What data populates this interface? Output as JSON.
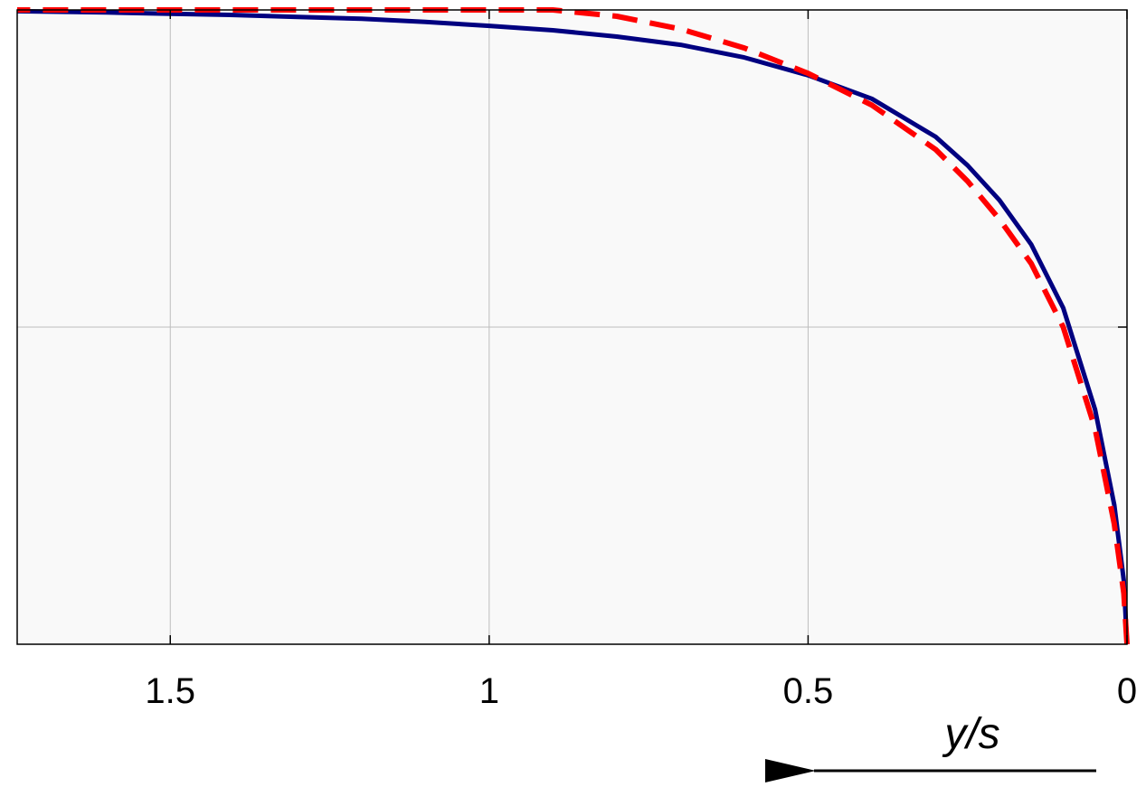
{
  "chart_data": {
    "type": "line",
    "xlabel": "y/s",
    "x_direction": "reversed",
    "xlim": [
      1.74,
      0
    ],
    "ylim": [
      0,
      1
    ],
    "x_ticks": [
      1.5,
      1,
      0.5,
      0
    ],
    "x_tick_labels": [
      "1.5",
      "1",
      "0.5",
      "0"
    ],
    "y_gridlines": [
      0.5
    ],
    "grid": true,
    "legend": "none",
    "plot_background": "#f9f9f9",
    "series": [
      {
        "color": "#000080",
        "style": "solid",
        "x": [
          0,
          0.005,
          0.02,
          0.05,
          0.1,
          0.15,
          0.2,
          0.25,
          0.3,
          0.4,
          0.5,
          0.6,
          0.7,
          0.8,
          0.9,
          1.0,
          1.1,
          1.2,
          1.3,
          1.4,
          1.5,
          1.6,
          1.74
        ],
        "y": [
          0,
          0.1,
          0.22,
          0.37,
          0.53,
          0.63,
          0.7,
          0.755,
          0.8,
          0.86,
          0.897,
          0.925,
          0.945,
          0.958,
          0.968,
          0.975,
          0.981,
          0.986,
          0.989,
          0.992,
          0.994,
          0.996,
          0.998
        ]
      },
      {
        "color": "#ff0000",
        "style": "dashed",
        "x": [
          0,
          0.005,
          0.02,
          0.05,
          0.1,
          0.15,
          0.2,
          0.25,
          0.3,
          0.4,
          0.5,
          0.6,
          0.7,
          0.8,
          0.9,
          1.0,
          1.1,
          1.2,
          1.3,
          1.4,
          1.5,
          1.6,
          1.74
        ],
        "y": [
          0,
          0.08,
          0.19,
          0.34,
          0.5,
          0.6,
          0.67,
          0.73,
          0.78,
          0.85,
          0.9,
          0.94,
          0.97,
          0.99,
          1.0,
          1.0,
          1.0,
          1.0,
          1.0,
          1.0,
          1.0,
          1.0,
          1.0
        ]
      }
    ]
  }
}
